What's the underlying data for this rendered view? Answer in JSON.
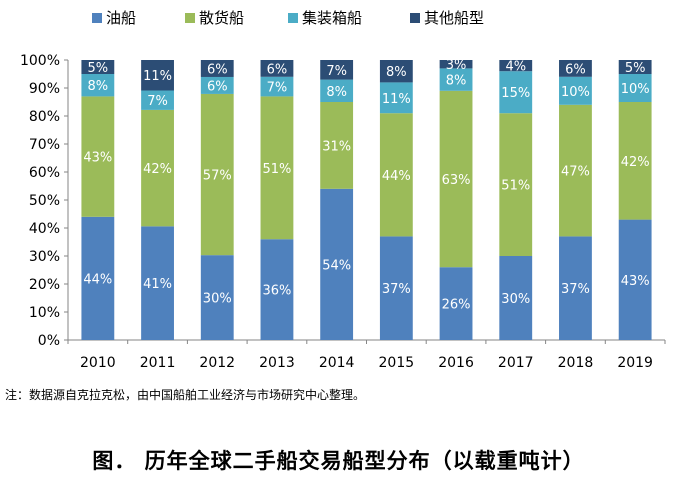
{
  "chart_data": {
    "type": "bar",
    "stacked": true,
    "title": "",
    "xlabel": "",
    "ylabel": "",
    "ylim": [
      0,
      100
    ],
    "y_ticks": [
      "0%",
      "10%",
      "20%",
      "30%",
      "40%",
      "50%",
      "60%",
      "70%",
      "80%",
      "90%",
      "100%"
    ],
    "categories": [
      "2010",
      "2011",
      "2012",
      "2013",
      "2014",
      "2015",
      "2016",
      "2017",
      "2018",
      "2019"
    ],
    "legend_position": "top",
    "grid": false,
    "series": [
      {
        "name": "油船",
        "color": "#4f81bd",
        "values": [
          44,
          41,
          30,
          36,
          54,
          37,
          26,
          30,
          37,
          43
        ]
      },
      {
        "name": "散货船",
        "color": "#9bbb59",
        "values": [
          43,
          42,
          57,
          51,
          31,
          44,
          63,
          51,
          47,
          42
        ]
      },
      {
        "name": "集装箱船",
        "color": "#4bacc6",
        "values": [
          8,
          7,
          6,
          7,
          8,
          11,
          8,
          15,
          10,
          10
        ]
      },
      {
        "name": "其他船型",
        "color": "#2c4d75",
        "values": [
          5,
          11,
          6,
          6,
          7,
          8,
          3,
          4,
          6,
          5
        ]
      }
    ]
  },
  "note": "注：数据源自克拉克松，由中国船舶工业经济与市场研究中心整理。",
  "caption": "图．  历年全球二手船交易船型分布（以载重吨计）"
}
